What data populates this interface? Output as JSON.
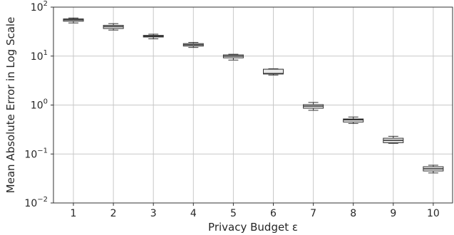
{
  "chart_data": {
    "type": "box",
    "xlabel": "Privacy Budget ε",
    "ylabel": "Mean Absolute Error in Log Scale",
    "y_scale": "log",
    "ylim": [
      0.01,
      100
    ],
    "grid": true,
    "categories": [
      "1",
      "2",
      "3",
      "4",
      "5",
      "6",
      "7",
      "8",
      "9",
      "10"
    ],
    "y_ticks": [
      {
        "value": 0.01,
        "base": "10",
        "exp": "−2"
      },
      {
        "value": 0.1,
        "base": "10",
        "exp": "−1"
      },
      {
        "value": 1,
        "base": "10",
        "exp": "0"
      },
      {
        "value": 10,
        "base": "10",
        "exp": "1"
      },
      {
        "value": 100,
        "base": "10",
        "exp": "2"
      }
    ],
    "boxes": [
      {
        "category": "1",
        "min": 47.5,
        "q1": 51.5,
        "median": 55.0,
        "q3": 57.5,
        "max": 60.0
      },
      {
        "category": "2",
        "min": 34.0,
        "q1": 36.5,
        "median": 40.0,
        "q3": 42.5,
        "max": 46.0
      },
      {
        "category": "3",
        "min": 22.5,
        "q1": 24.5,
        "median": 25.5,
        "q3": 26.5,
        "max": 28.0
      },
      {
        "category": "4",
        "min": 15.0,
        "q1": 16.0,
        "median": 17.0,
        "q3": 18.0,
        "max": 19.0
      },
      {
        "category": "5",
        "min": 8.3,
        "q1": 9.2,
        "median": 10.0,
        "q3": 10.6,
        "max": 10.9
      },
      {
        "category": "6",
        "min": 4.1,
        "q1": 4.3,
        "median": 4.4,
        "q3": 5.4,
        "max": 5.5
      },
      {
        "category": "7",
        "min": 0.78,
        "q1": 0.86,
        "median": 0.95,
        "q3": 1.02,
        "max": 1.13
      },
      {
        "category": "8",
        "min": 0.42,
        "q1": 0.45,
        "median": 0.5,
        "q3": 0.52,
        "max": 0.57
      },
      {
        "category": "9",
        "min": 0.165,
        "q1": 0.17,
        "median": 0.19,
        "q3": 0.21,
        "max": 0.23
      },
      {
        "category": "10",
        "min": 0.041,
        "q1": 0.045,
        "median": 0.05,
        "q3": 0.055,
        "max": 0.059
      }
    ]
  }
}
